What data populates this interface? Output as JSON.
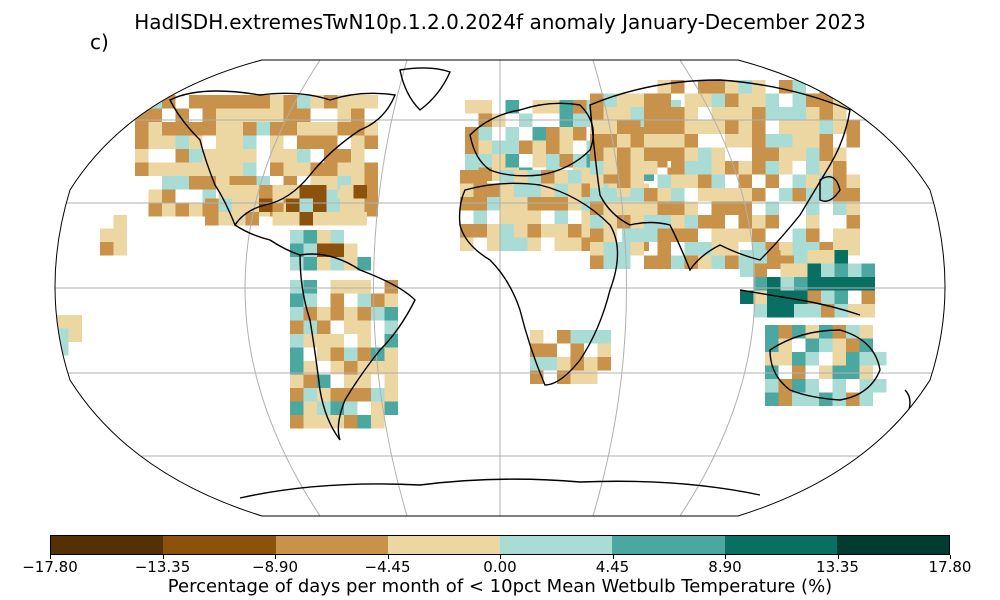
{
  "figure": {
    "title": "HadISDH.extremesTwN10p.1.2.0.2024f anomaly January-December 2023",
    "panel_label": "c)"
  },
  "colorbar": {
    "label": "Percentage of days per month of < 10pct Mean Wetbulb Temperature (%)",
    "ticks": [
      "−17.80",
      "−13.35",
      "−8.90",
      "−4.45",
      "0.00",
      "4.45",
      "8.90",
      "13.35",
      "17.80"
    ],
    "colors": [
      "#543005",
      "#8c510a",
      "#c8924a",
      "#ecd6a2",
      "#aadcd6",
      "#4aa8a0",
      "#0a6f63",
      "#003c30"
    ]
  },
  "map": {
    "projection": "Robinson",
    "graticule": true,
    "legend_scale": "diverging brown-teal",
    "regions": [
      {
        "name": "north-america",
        "level": "dark-brown-to-tan"
      },
      {
        "name": "south-america",
        "level": "brown-with-teal"
      },
      {
        "name": "europe",
        "level": "tan-with-teal"
      },
      {
        "name": "asia",
        "level": "brown-tan"
      },
      {
        "name": "africa",
        "level": "sparse"
      },
      {
        "name": "australia",
        "level": "tan-teal-mix"
      }
    ]
  }
}
